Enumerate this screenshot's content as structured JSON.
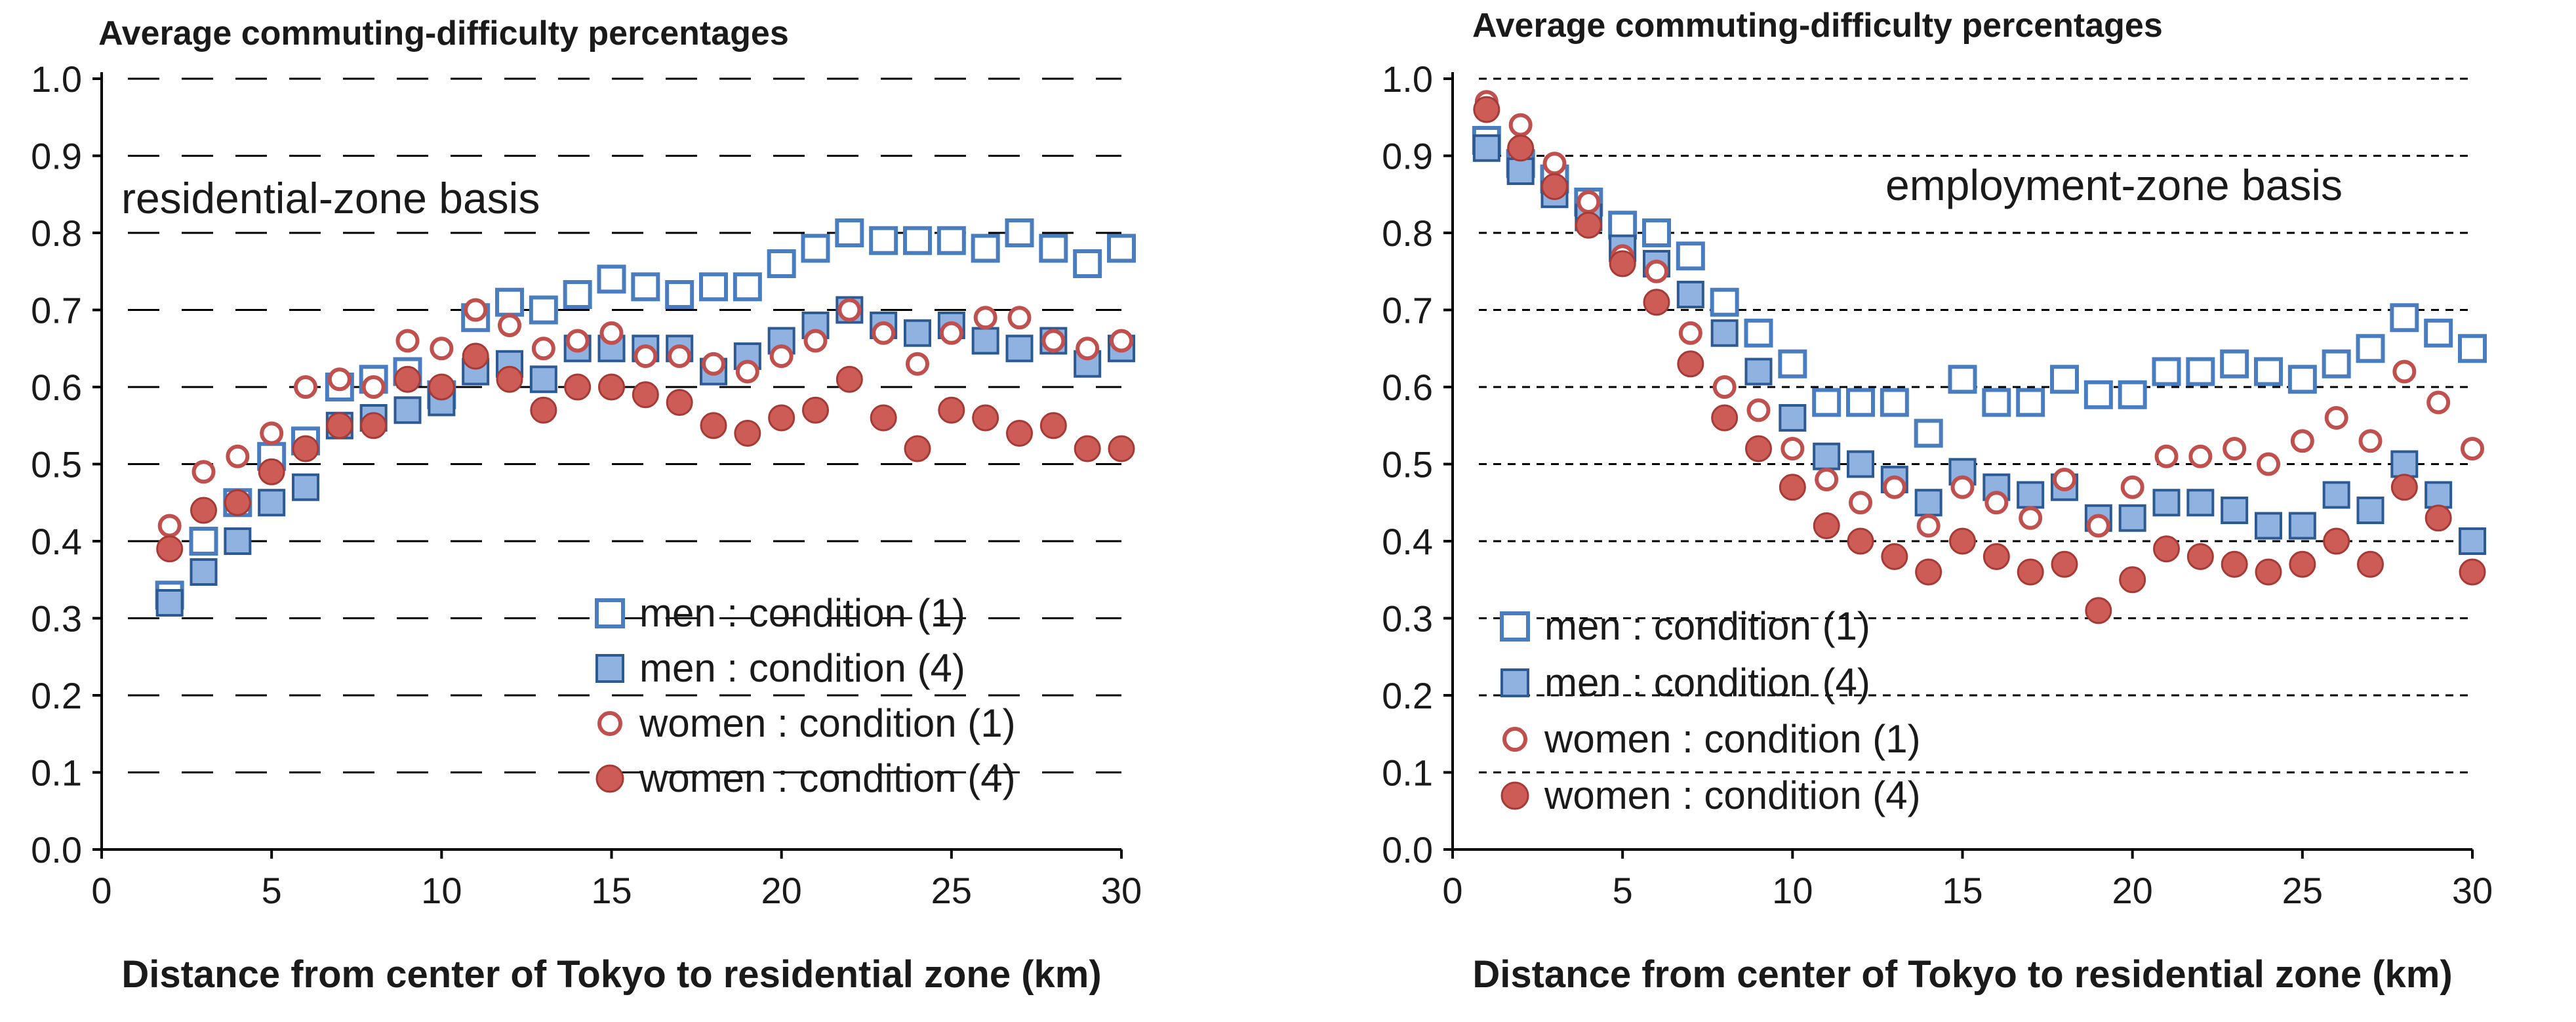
{
  "colors": {
    "blue": "#4a7dbf",
    "blue_fill": "#8fb2e0",
    "red": "#c0504d",
    "red_fill": "#cd5c57",
    "axis": "#000000",
    "grid": "#000000"
  },
  "chart_data": [
    {
      "type": "scatter",
      "title": "Average commuting-difficulty percentages",
      "annotation": "residential-zone basis",
      "xlabel": "Distance from center of Tokyo to residential zone (km)",
      "ylabel": "",
      "xlim": [
        0,
        30
      ],
      "ylim": [
        0,
        1.0
      ],
      "xticks": [
        "0",
        "5",
        "10",
        "15",
        "20",
        "25",
        "30"
      ],
      "yticks": [
        "0.0",
        "0.1",
        "0.2",
        "0.3",
        "0.4",
        "0.5",
        "0.6",
        "0.7",
        "0.8",
        "0.9",
        "1.0"
      ],
      "grid": "dashed horizontal",
      "legend_position": "lower-right",
      "x": [
        2,
        3,
        4,
        5,
        6,
        7,
        8,
        9,
        10,
        11,
        12,
        13,
        14,
        15,
        16,
        17,
        18,
        19,
        20,
        21,
        22,
        23,
        24,
        25,
        26,
        27,
        28,
        29,
        30
      ],
      "series": [
        {
          "name": "men : condition (1)",
          "marker": "square-open",
          "color": "blue",
          "values": [
            0.33,
            0.4,
            0.45,
            0.51,
            0.53,
            0.6,
            0.61,
            0.62,
            0.59,
            0.69,
            0.71,
            0.7,
            0.72,
            0.74,
            0.73,
            0.72,
            0.73,
            0.73,
            0.76,
            0.78,
            0.8,
            0.79,
            0.79,
            0.79,
            0.78,
            0.8,
            0.78,
            0.76,
            0.78
          ]
        },
        {
          "name": "men : condition (4)",
          "marker": "square-filled",
          "color": "blue",
          "values": [
            0.32,
            0.36,
            0.4,
            0.45,
            0.47,
            0.55,
            0.56,
            0.57,
            0.58,
            0.62,
            0.63,
            0.61,
            0.65,
            0.65,
            0.65,
            0.65,
            0.62,
            0.64,
            0.66,
            0.68,
            0.7,
            0.68,
            0.67,
            0.68,
            0.66,
            0.65,
            0.66,
            0.63,
            0.65
          ]
        },
        {
          "name": "women : condition (1)",
          "marker": "circle-open",
          "color": "red",
          "values": [
            0.42,
            0.49,
            0.51,
            0.54,
            0.6,
            0.61,
            0.6,
            0.66,
            0.65,
            0.7,
            0.68,
            0.65,
            0.66,
            0.67,
            0.64,
            0.64,
            0.63,
            0.62,
            0.64,
            0.66,
            0.7,
            0.67,
            0.63,
            0.67,
            0.69,
            0.69,
            0.66,
            0.65,
            0.66
          ]
        },
        {
          "name": "women : condition (4)",
          "marker": "circle-filled",
          "color": "red",
          "values": [
            0.39,
            0.44,
            0.45,
            0.49,
            0.52,
            0.55,
            0.55,
            0.61,
            0.6,
            0.64,
            0.61,
            0.57,
            0.6,
            0.6,
            0.59,
            0.58,
            0.55,
            0.54,
            0.56,
            0.57,
            0.61,
            0.56,
            0.52,
            0.57,
            0.56,
            0.54,
            0.55,
            0.52,
            0.52
          ]
        }
      ]
    },
    {
      "type": "scatter",
      "title": "Average commuting-difficulty percentages",
      "annotation": "employment-zone basis",
      "xlabel": "Distance from center of Tokyo to residential zone (km)",
      "ylabel": "",
      "xlim": [
        0,
        30
      ],
      "ylim": [
        0,
        1.0
      ],
      "xticks": [
        "0",
        "5",
        "10",
        "15",
        "20",
        "25",
        "30"
      ],
      "yticks": [
        "0.0",
        "0.1",
        "0.2",
        "0.3",
        "0.4",
        "0.5",
        "0.6",
        "0.7",
        "0.8",
        "0.9",
        "1.0"
      ],
      "grid": "dashed horizontal",
      "legend_position": "lower-left",
      "x": [
        1,
        2,
        3,
        4,
        5,
        6,
        7,
        8,
        9,
        10,
        11,
        12,
        13,
        14,
        15,
        16,
        17,
        18,
        19,
        20,
        21,
        22,
        23,
        24,
        25,
        26,
        27,
        28,
        29,
        30
      ],
      "series": [
        {
          "name": "men : condition (1)",
          "marker": "square-open",
          "color": "blue",
          "values": [
            0.92,
            0.89,
            0.87,
            0.84,
            0.81,
            0.8,
            0.77,
            0.71,
            0.67,
            0.63,
            0.58,
            0.58,
            0.58,
            0.54,
            0.61,
            0.58,
            0.58,
            0.61,
            0.59,
            0.59,
            0.62,
            0.62,
            0.63,
            0.62,
            0.61,
            0.63,
            0.65,
            0.69,
            0.67,
            0.65
          ]
        },
        {
          "name": "men : condition (4)",
          "marker": "square-filled",
          "color": "blue",
          "values": [
            0.91,
            0.88,
            0.85,
            0.82,
            0.78,
            0.76,
            0.72,
            0.67,
            0.62,
            0.56,
            0.51,
            0.5,
            0.48,
            0.45,
            0.49,
            0.47,
            0.46,
            0.47,
            0.43,
            0.43,
            0.45,
            0.45,
            0.44,
            0.42,
            0.42,
            0.46,
            0.44,
            0.5,
            0.46,
            0.4
          ]
        },
        {
          "name": "women : condition (1)",
          "marker": "circle-open",
          "color": "red",
          "values": [
            0.97,
            0.94,
            0.89,
            0.84,
            0.77,
            0.75,
            0.67,
            0.6,
            0.57,
            0.52,
            0.48,
            0.45,
            0.47,
            0.42,
            0.47,
            0.45,
            0.43,
            0.48,
            0.42,
            0.47,
            0.51,
            0.51,
            0.52,
            0.5,
            0.53,
            0.56,
            0.53,
            0.62,
            0.58,
            0.52
          ]
        },
        {
          "name": "women : condition (4)",
          "marker": "circle-filled",
          "color": "red",
          "values": [
            0.96,
            0.91,
            0.86,
            0.81,
            0.76,
            0.71,
            0.63,
            0.56,
            0.52,
            0.47,
            0.42,
            0.4,
            0.38,
            0.36,
            0.4,
            0.38,
            0.36,
            0.37,
            0.31,
            0.35,
            0.39,
            0.38,
            0.37,
            0.36,
            0.37,
            0.4,
            0.37,
            0.47,
            0.43,
            0.36
          ]
        }
      ]
    }
  ]
}
